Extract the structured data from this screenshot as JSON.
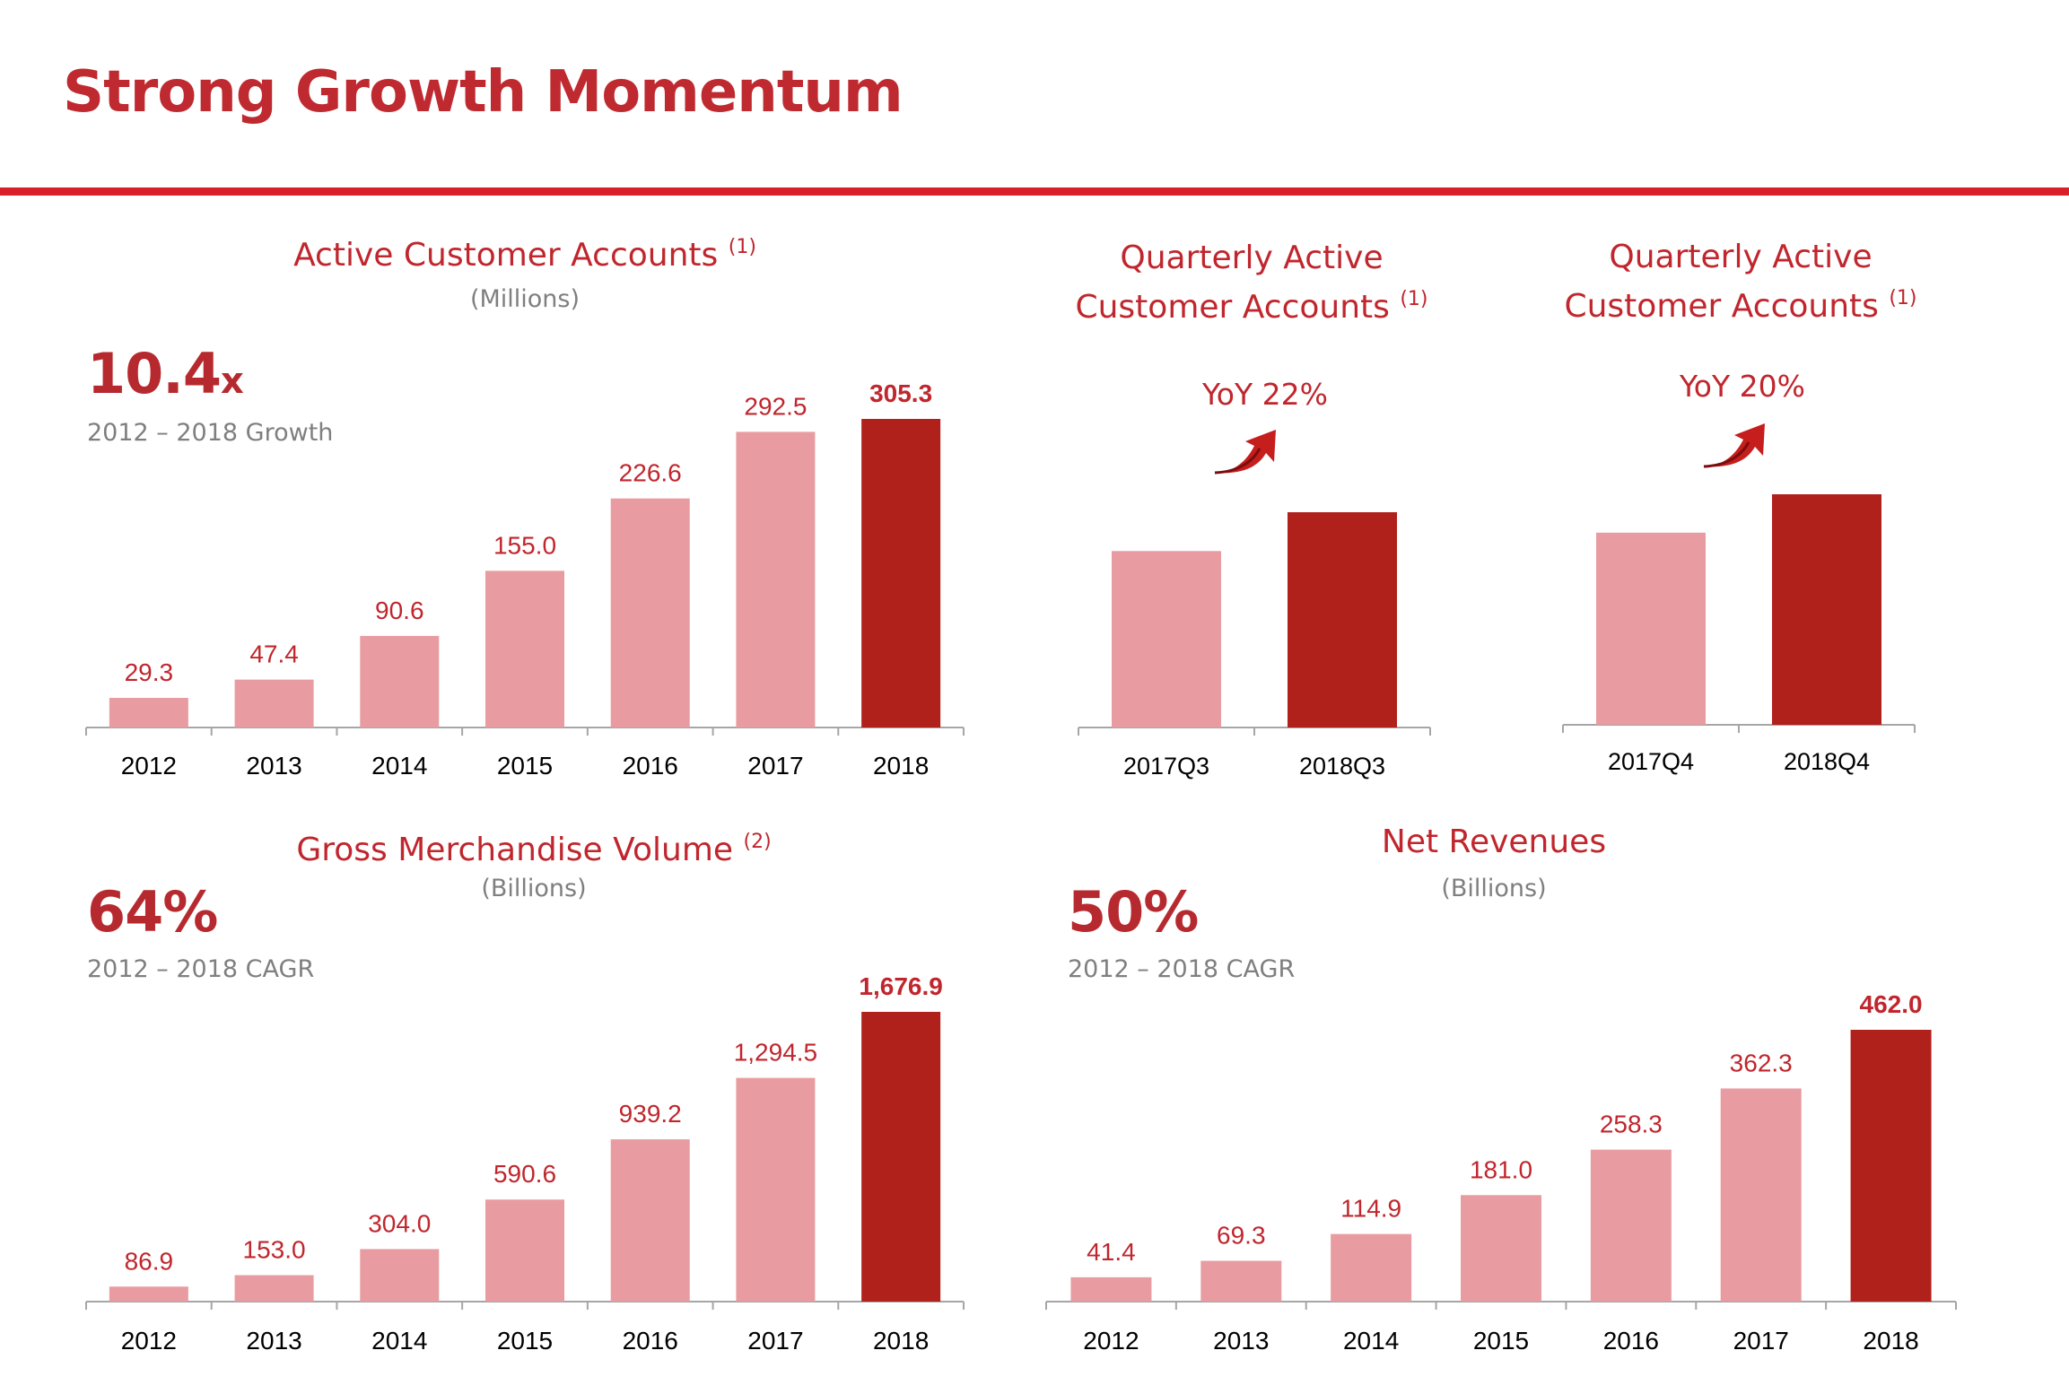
{
  "slide": {
    "title": "Strong Growth Momentum"
  },
  "colors": {
    "accent": "#d9202a",
    "bar_light": "#e89ca1",
    "bar_dark": "#b0211c",
    "text_red": "#c0262d",
    "muted": "#7f7f7f"
  },
  "active_accounts": {
    "title": "Active Customer Accounts",
    "footnote": "(1)",
    "unit": "(Millions)",
    "kpi_value": "10.4",
    "kpi_suffix": "x",
    "kpi_note": "2012 – 2018 Growth"
  },
  "q3": {
    "title_line1": "Quarterly Active",
    "title_line2": "Customer Accounts",
    "footnote": "(1)",
    "yoy": "YoY 22%",
    "arrow_icon": "up-arrow-icon"
  },
  "q4": {
    "title_line1": "Quarterly Active",
    "title_line2": "Customer Accounts",
    "footnote": "(1)",
    "yoy": "YoY 20%",
    "arrow_icon": "up-arrow-icon"
  },
  "gmv": {
    "title": "Gross Merchandise Volume",
    "footnote": "(2)",
    "unit": "(Billions)",
    "kpi_value": "64%",
    "kpi_note": "2012 – 2018 CAGR"
  },
  "revenue": {
    "title": "Net Revenues",
    "unit": "(Billions)",
    "kpi_value": "50%",
    "kpi_note": "2012 – 2018 CAGR"
  },
  "chart_data": [
    {
      "id": "active",
      "type": "bar",
      "title": "Active Customer Accounts",
      "ylabel": "(Millions)",
      "categories": [
        "2012",
        "2013",
        "2014",
        "2015",
        "2016",
        "2017",
        "2018"
      ],
      "values": [
        29.3,
        47.4,
        90.6,
        155.0,
        226.6,
        292.5,
        305.3
      ],
      "labels": [
        "29.3",
        "47.4",
        "90.6",
        "155.0",
        "226.6",
        "292.5",
        "305.3"
      ],
      "highlight_index": 6
    },
    {
      "id": "q3",
      "type": "bar",
      "title": "Quarterly Active Customer Accounts",
      "categories": [
        "2017Q3",
        "2018Q3"
      ],
      "values": [
        100,
        122
      ],
      "highlight_index": 1
    },
    {
      "id": "q4",
      "type": "bar",
      "title": "Quarterly Active Customer Accounts",
      "categories": [
        "2017Q4",
        "2018Q4"
      ],
      "values": [
        100,
        120
      ],
      "highlight_index": 1
    },
    {
      "id": "gmv",
      "type": "bar",
      "title": "Gross Merchandise Volume",
      "ylabel": "(Billions)",
      "categories": [
        "2012",
        "2013",
        "2014",
        "2015",
        "2016",
        "2017",
        "2018"
      ],
      "values": [
        86.9,
        153.0,
        304.0,
        590.6,
        939.2,
        1294.5,
        1676.9
      ],
      "labels": [
        "86.9",
        "153.0",
        "304.0",
        "590.6",
        "939.2",
        "1,294.5",
        "1,676.9"
      ],
      "highlight_index": 6
    },
    {
      "id": "revenue",
      "type": "bar",
      "title": "Net Revenues",
      "ylabel": "(Billions)",
      "categories": [
        "2012",
        "2013",
        "2014",
        "2015",
        "2016",
        "2017",
        "2018"
      ],
      "values": [
        41.4,
        69.3,
        114.9,
        181.0,
        258.3,
        362.3,
        462.0
      ],
      "labels": [
        "41.4",
        "69.3",
        "114.9",
        "181.0",
        "258.3",
        "362.3",
        "462.0"
      ],
      "highlight_index": 6
    }
  ]
}
